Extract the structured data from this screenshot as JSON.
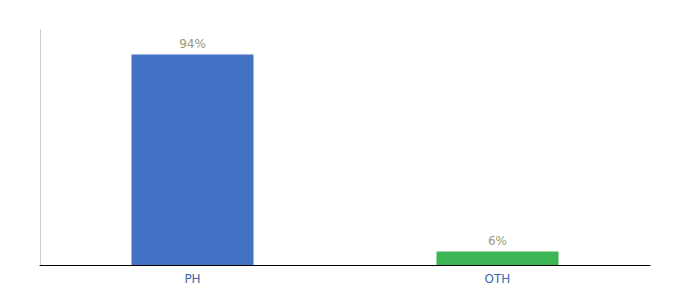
{
  "chart_data": {
    "type": "bar",
    "categories": [
      "PH",
      "OTH"
    ],
    "values": [
      94,
      6
    ],
    "value_labels": [
      "94%",
      "6%"
    ],
    "colors": [
      "#4472c4",
      "#3cb554"
    ],
    "data_labels": true,
    "ylim": [
      0,
      105
    ],
    "tick_labels": "x",
    "grid": false
  }
}
